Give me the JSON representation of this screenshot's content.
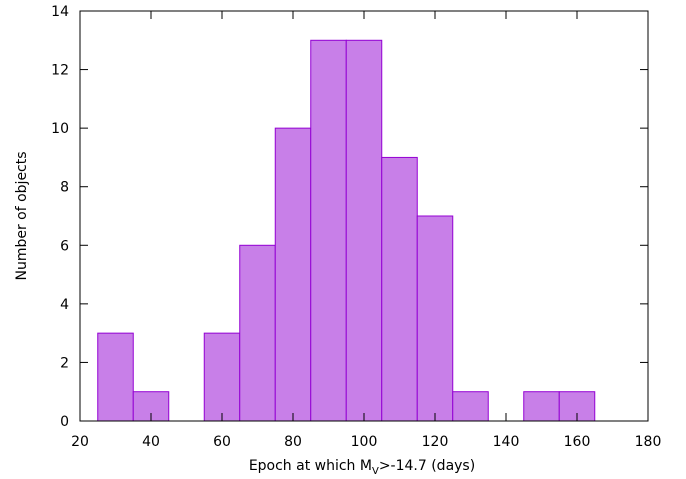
{
  "chart_data": {
    "type": "bar",
    "title": "",
    "xlabel": {
      "prefix": "Epoch at which M",
      "subscript": "V",
      "suffix": ">-14.7 (days)"
    },
    "ylabel": "Number of objects",
    "xlim": [
      20,
      180
    ],
    "ylim": [
      0,
      14
    ],
    "xticks": [
      "20",
      "40",
      "60",
      "80",
      "100",
      "120",
      "140",
      "160",
      "180"
    ],
    "yticks": [
      "0",
      "2",
      "4",
      "6",
      "8",
      "10",
      "12",
      "14"
    ],
    "bin_width": 10,
    "bins": [
      {
        "x_start": 25,
        "x_end": 35,
        "value": 3
      },
      {
        "x_start": 35,
        "x_end": 45,
        "value": 1
      },
      {
        "x_start": 45,
        "x_end": 55,
        "value": 0
      },
      {
        "x_start": 55,
        "x_end": 65,
        "value": 3
      },
      {
        "x_start": 65,
        "x_end": 75,
        "value": 6
      },
      {
        "x_start": 75,
        "x_end": 85,
        "value": 10
      },
      {
        "x_start": 85,
        "x_end": 95,
        "value": 13
      },
      {
        "x_start": 95,
        "x_end": 105,
        "value": 13
      },
      {
        "x_start": 105,
        "x_end": 115,
        "value": 9
      },
      {
        "x_start": 115,
        "x_end": 125,
        "value": 7
      },
      {
        "x_start": 125,
        "x_end": 135,
        "value": 1
      },
      {
        "x_start": 135,
        "x_end": 145,
        "value": 0
      },
      {
        "x_start": 145,
        "x_end": 155,
        "value": 1
      },
      {
        "x_start": 155,
        "x_end": 165,
        "value": 1
      }
    ],
    "grid": false,
    "legend": "none",
    "colors": {
      "bar_fill": "#c87fe8",
      "bar_stroke": "#9400d3",
      "axis": "#000000"
    }
  }
}
